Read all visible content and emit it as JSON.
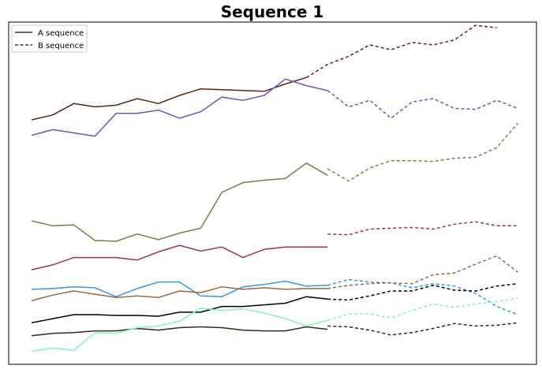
{
  "chart_data": {
    "type": "line",
    "title": "Sequence 1",
    "xlabel": "",
    "ylabel": "",
    "x_range": [
      0,
      23
    ],
    "y_range": [
      0,
      21
    ],
    "grid": false,
    "ticks": false,
    "legend": {
      "placement": "top-left",
      "entries": [
        {
          "label": "A sequence",
          "style": "solid"
        },
        {
          "label": "B sequence",
          "style": "dashed"
        }
      ]
    },
    "series": [
      {
        "color": "#5c2419",
        "a": [
          {
            "x": 0,
            "y": 15
          },
          {
            "x": 1,
            "y": 15.3
          },
          {
            "x": 2,
            "y": 16
          },
          {
            "x": 3,
            "y": 15.8
          },
          {
            "x": 4,
            "y": 15.9
          },
          {
            "x": 5,
            "y": 16.3
          },
          {
            "x": 6,
            "y": 16
          },
          {
            "x": 7,
            "y": 16.5
          },
          {
            "x": 8,
            "y": 16.9
          },
          {
            "x": 9,
            "y": 16.85
          },
          {
            "x": 10,
            "y": 16.8
          },
          {
            "x": 11,
            "y": 16.75
          },
          {
            "x": 12,
            "y": 17.2
          },
          {
            "x": 13,
            "y": 17.6
          }
        ],
        "b": [
          {
            "x": 13,
            "y": 17.6
          },
          {
            "x": 14,
            "y": 18.4
          },
          {
            "x": 15,
            "y": 18.9
          },
          {
            "x": 16,
            "y": 19.6
          },
          {
            "x": 17,
            "y": 19.3
          },
          {
            "x": 18,
            "y": 19.75
          },
          {
            "x": 19,
            "y": 19.6
          },
          {
            "x": 20,
            "y": 19.9
          },
          {
            "x": 21,
            "y": 20.8
          },
          {
            "x": 22,
            "y": 20.65
          }
        ]
      },
      {
        "color": "#6657b8",
        "a": [
          {
            "x": 0,
            "y": 14.05
          },
          {
            "x": 1,
            "y": 14.4
          },
          {
            "x": 2,
            "y": 14.2
          },
          {
            "x": 3,
            "y": 14
          },
          {
            "x": 4,
            "y": 15.4
          },
          {
            "x": 5,
            "y": 15.4
          },
          {
            "x": 6,
            "y": 15.6
          },
          {
            "x": 7,
            "y": 15.1
          },
          {
            "x": 8,
            "y": 15.5
          },
          {
            "x": 9,
            "y": 16.4
          },
          {
            "x": 10,
            "y": 16.2
          },
          {
            "x": 11,
            "y": 16.5
          },
          {
            "x": 12,
            "y": 17.5
          },
          {
            "x": 13,
            "y": 17.1
          },
          {
            "x": 14,
            "y": 16.8
          }
        ],
        "b": [
          {
            "x": 14,
            "y": 16.8
          },
          {
            "x": 15,
            "y": 15.8
          },
          {
            "x": 16,
            "y": 16.2
          },
          {
            "x": 17,
            "y": 15.1
          },
          {
            "x": 18,
            "y": 16.1
          },
          {
            "x": 19,
            "y": 16.3
          },
          {
            "x": 20,
            "y": 15.7
          },
          {
            "x": 21,
            "y": 15.65
          },
          {
            "x": 22,
            "y": 16.2
          },
          {
            "x": 23,
            "y": 15.7
          }
        ]
      },
      {
        "color": "#768049",
        "a": [
          {
            "x": 0,
            "y": 8.8
          },
          {
            "x": 1,
            "y": 8.5
          },
          {
            "x": 2,
            "y": 8.55
          },
          {
            "x": 3,
            "y": 7.6
          },
          {
            "x": 4,
            "y": 7.55
          },
          {
            "x": 5,
            "y": 8
          },
          {
            "x": 6,
            "y": 7.65
          },
          {
            "x": 7,
            "y": 8.05
          },
          {
            "x": 8,
            "y": 8.35
          },
          {
            "x": 9,
            "y": 10.55
          },
          {
            "x": 10,
            "y": 11.15
          },
          {
            "x": 11,
            "y": 11.3
          },
          {
            "x": 12,
            "y": 11.4
          },
          {
            "x": 13,
            "y": 12.35
          },
          {
            "x": 14,
            "y": 11.6
          }
        ],
        "b": [
          {
            "x": 14,
            "y": 12
          },
          {
            "x": 15,
            "y": 11.25
          },
          {
            "x": 16,
            "y": 12.05
          },
          {
            "x": 17,
            "y": 12.5
          },
          {
            "x": 18,
            "y": 12.5
          },
          {
            "x": 19,
            "y": 12.45
          },
          {
            "x": 20,
            "y": 12.65
          },
          {
            "x": 21,
            "y": 12.7
          },
          {
            "x": 22,
            "y": 13.3
          },
          {
            "x": 23,
            "y": 14.8
          }
        ]
      },
      {
        "color": "#99335c",
        "a": [
          {
            "x": 0,
            "y": 5.8
          },
          {
            "x": 1,
            "y": 6.1
          },
          {
            "x": 2,
            "y": 6.55
          },
          {
            "x": 3,
            "y": 6.55
          },
          {
            "x": 4,
            "y": 6.55
          },
          {
            "x": 5,
            "y": 6.4
          },
          {
            "x": 6,
            "y": 6.9
          },
          {
            "x": 7,
            "y": 7.3
          },
          {
            "x": 8,
            "y": 6.95
          },
          {
            "x": 9,
            "y": 7.2
          },
          {
            "x": 10,
            "y": 6.55
          },
          {
            "x": 11,
            "y": 7.05
          },
          {
            "x": 12,
            "y": 7.2
          },
          {
            "x": 13,
            "y": 7.2
          },
          {
            "x": 14,
            "y": 7.2
          }
        ],
        "b": [
          {
            "x": 14,
            "y": 8
          },
          {
            "x": 15,
            "y": 7.95
          },
          {
            "x": 16,
            "y": 8.3
          },
          {
            "x": 17,
            "y": 8.35
          },
          {
            "x": 18,
            "y": 8.4
          },
          {
            "x": 19,
            "y": 8.3
          },
          {
            "x": 20,
            "y": 8.6
          },
          {
            "x": 21,
            "y": 8.75
          },
          {
            "x": 22,
            "y": 8.5
          },
          {
            "x": 23,
            "y": 8.5
          }
        ]
      },
      {
        "color": "#3399e0",
        "a": [
          {
            "x": 0,
            "y": 4.6
          },
          {
            "x": 1,
            "y": 4.65
          },
          {
            "x": 2,
            "y": 4.75
          },
          {
            "x": 3,
            "y": 4.7
          },
          {
            "x": 4,
            "y": 4.15
          },
          {
            "x": 5,
            "y": 4.65
          },
          {
            "x": 6,
            "y": 5.05
          },
          {
            "x": 7,
            "y": 5.05
          },
          {
            "x": 8,
            "y": 4.2
          },
          {
            "x": 9,
            "y": 4.15
          },
          {
            "x": 10,
            "y": 4.75
          },
          {
            "x": 11,
            "y": 4.9
          },
          {
            "x": 12,
            "y": 5.1
          },
          {
            "x": 13,
            "y": 4.8
          },
          {
            "x": 14,
            "y": 4.85
          }
        ],
        "b": [
          {
            "x": 14,
            "y": 4.85
          },
          {
            "x": 15,
            "y": 5.2
          },
          {
            "x": 16,
            "y": 5.05
          },
          {
            "x": 17,
            "y": 5
          },
          {
            "x": 18,
            "y": 4.7
          },
          {
            "x": 19,
            "y": 4.95
          },
          {
            "x": 20,
            "y": 4.8
          },
          {
            "x": 21,
            "y": 4.35
          },
          {
            "x": 22,
            "y": 3.55
          },
          {
            "x": 23,
            "y": 3.05
          }
        ]
      },
      {
        "color": "#a06640",
        "a": [
          {
            "x": 0,
            "y": 3.9
          },
          {
            "x": 1,
            "y": 4.25
          },
          {
            "x": 2,
            "y": 4.5
          },
          {
            "x": 3,
            "y": 4.3
          },
          {
            "x": 4,
            "y": 4.1
          },
          {
            "x": 5,
            "y": 4.2
          },
          {
            "x": 6,
            "y": 4.1
          },
          {
            "x": 7,
            "y": 4.5
          },
          {
            "x": 8,
            "y": 4.4
          },
          {
            "x": 9,
            "y": 4.75
          },
          {
            "x": 10,
            "y": 4.6
          },
          {
            "x": 11,
            "y": 4.7
          },
          {
            "x": 12,
            "y": 4.6
          },
          {
            "x": 13,
            "y": 4.65
          },
          {
            "x": 14,
            "y": 4.65
          }
        ],
        "b": [
          {
            "x": 14,
            "y": 4.65
          },
          {
            "x": 15,
            "y": 4.85
          },
          {
            "x": 16,
            "y": 4.95
          },
          {
            "x": 17,
            "y": 5
          },
          {
            "x": 18,
            "y": 4.95
          },
          {
            "x": 19,
            "y": 5.5
          },
          {
            "x": 20,
            "y": 5.6
          },
          {
            "x": 21,
            "y": 6.15
          },
          {
            "x": 22,
            "y": 6.65
          },
          {
            "x": 23,
            "y": 5.65
          }
        ]
      },
      {
        "color": "#000000",
        "a": [
          {
            "x": 0,
            "y": 2.55
          },
          {
            "x": 1,
            "y": 2.8
          },
          {
            "x": 2,
            "y": 3.05
          },
          {
            "x": 3,
            "y": 3.05
          },
          {
            "x": 4,
            "y": 3
          },
          {
            "x": 5,
            "y": 3
          },
          {
            "x": 6,
            "y": 2.95
          },
          {
            "x": 7,
            "y": 3.2
          },
          {
            "x": 8,
            "y": 3.2
          },
          {
            "x": 9,
            "y": 3.55
          },
          {
            "x": 10,
            "y": 3.55
          },
          {
            "x": 11,
            "y": 3.65
          },
          {
            "x": 12,
            "y": 3.75
          },
          {
            "x": 13,
            "y": 4.15
          },
          {
            "x": 14,
            "y": 4
          }
        ],
        "b": [
          {
            "x": 14,
            "y": 4
          },
          {
            "x": 15,
            "y": 3.95
          },
          {
            "x": 16,
            "y": 4.2
          },
          {
            "x": 17,
            "y": 4.5
          },
          {
            "x": 18,
            "y": 4.5
          },
          {
            "x": 19,
            "y": 4.85
          },
          {
            "x": 20,
            "y": 4.55
          },
          {
            "x": 21,
            "y": 4.5
          },
          {
            "x": 22,
            "y": 4.8
          },
          {
            "x": 23,
            "y": 4.95
          }
        ]
      },
      {
        "color": "#3b2418",
        "a": [
          {
            "x": 0,
            "y": 1.75
          },
          {
            "x": 1,
            "y": 1.9
          },
          {
            "x": 2,
            "y": 1.95
          },
          {
            "x": 3,
            "y": 2.05
          },
          {
            "x": 4,
            "y": 2.05
          },
          {
            "x": 5,
            "y": 2.2
          },
          {
            "x": 6,
            "y": 2.1
          },
          {
            "x": 7,
            "y": 2.25
          },
          {
            "x": 8,
            "y": 2.3
          },
          {
            "x": 9,
            "y": 2.25
          },
          {
            "x": 10,
            "y": 2.1
          },
          {
            "x": 11,
            "y": 2.05
          },
          {
            "x": 12,
            "y": 2.05
          },
          {
            "x": 13,
            "y": 2.3
          },
          {
            "x": 14,
            "y": 2.15
          }
        ],
        "b": [
          {
            "x": 14,
            "y": 2.35
          },
          {
            "x": 15,
            "y": 2.3
          },
          {
            "x": 16,
            "y": 2.1
          },
          {
            "x": 17,
            "y": 1.8
          },
          {
            "x": 18,
            "y": 1.95
          },
          {
            "x": 19,
            "y": 2.2
          },
          {
            "x": 20,
            "y": 2.5
          },
          {
            "x": 21,
            "y": 2.35
          },
          {
            "x": 22,
            "y": 2.4
          },
          {
            "x": 23,
            "y": 2.55
          }
        ]
      },
      {
        "color": "#80f5c0",
        "a": [
          {
            "x": 0,
            "y": 0.8
          },
          {
            "x": 1,
            "y": 1
          },
          {
            "x": 2,
            "y": 0.85
          },
          {
            "x": 3,
            "y": 1.95
          },
          {
            "x": 4,
            "y": 1.9
          },
          {
            "x": 5,
            "y": 2.25
          },
          {
            "x": 6,
            "y": 2.35
          },
          {
            "x": 7,
            "y": 2.65
          },
          {
            "x": 8,
            "y": 3.45
          },
          {
            "x": 9,
            "y": 3.3
          },
          {
            "x": 10,
            "y": 3.4
          },
          {
            "x": 11,
            "y": 3.15
          },
          {
            "x": 12,
            "y": 2.8
          },
          {
            "x": 13,
            "y": 2.35
          },
          {
            "x": 14,
            "y": 2.7
          }
        ],
        "b": [
          {
            "x": 14,
            "y": 2.7
          },
          {
            "x": 15,
            "y": 3.1
          },
          {
            "x": 16,
            "y": 3.1
          },
          {
            "x": 17,
            "y": 2.85
          },
          {
            "x": 18,
            "y": 3.3
          },
          {
            "x": 19,
            "y": 3.7
          },
          {
            "x": 20,
            "y": 3.5
          },
          {
            "x": 21,
            "y": 3.7
          },
          {
            "x": 22,
            "y": 3.85
          },
          {
            "x": 23,
            "y": 4.05
          }
        ]
      }
    ]
  }
}
